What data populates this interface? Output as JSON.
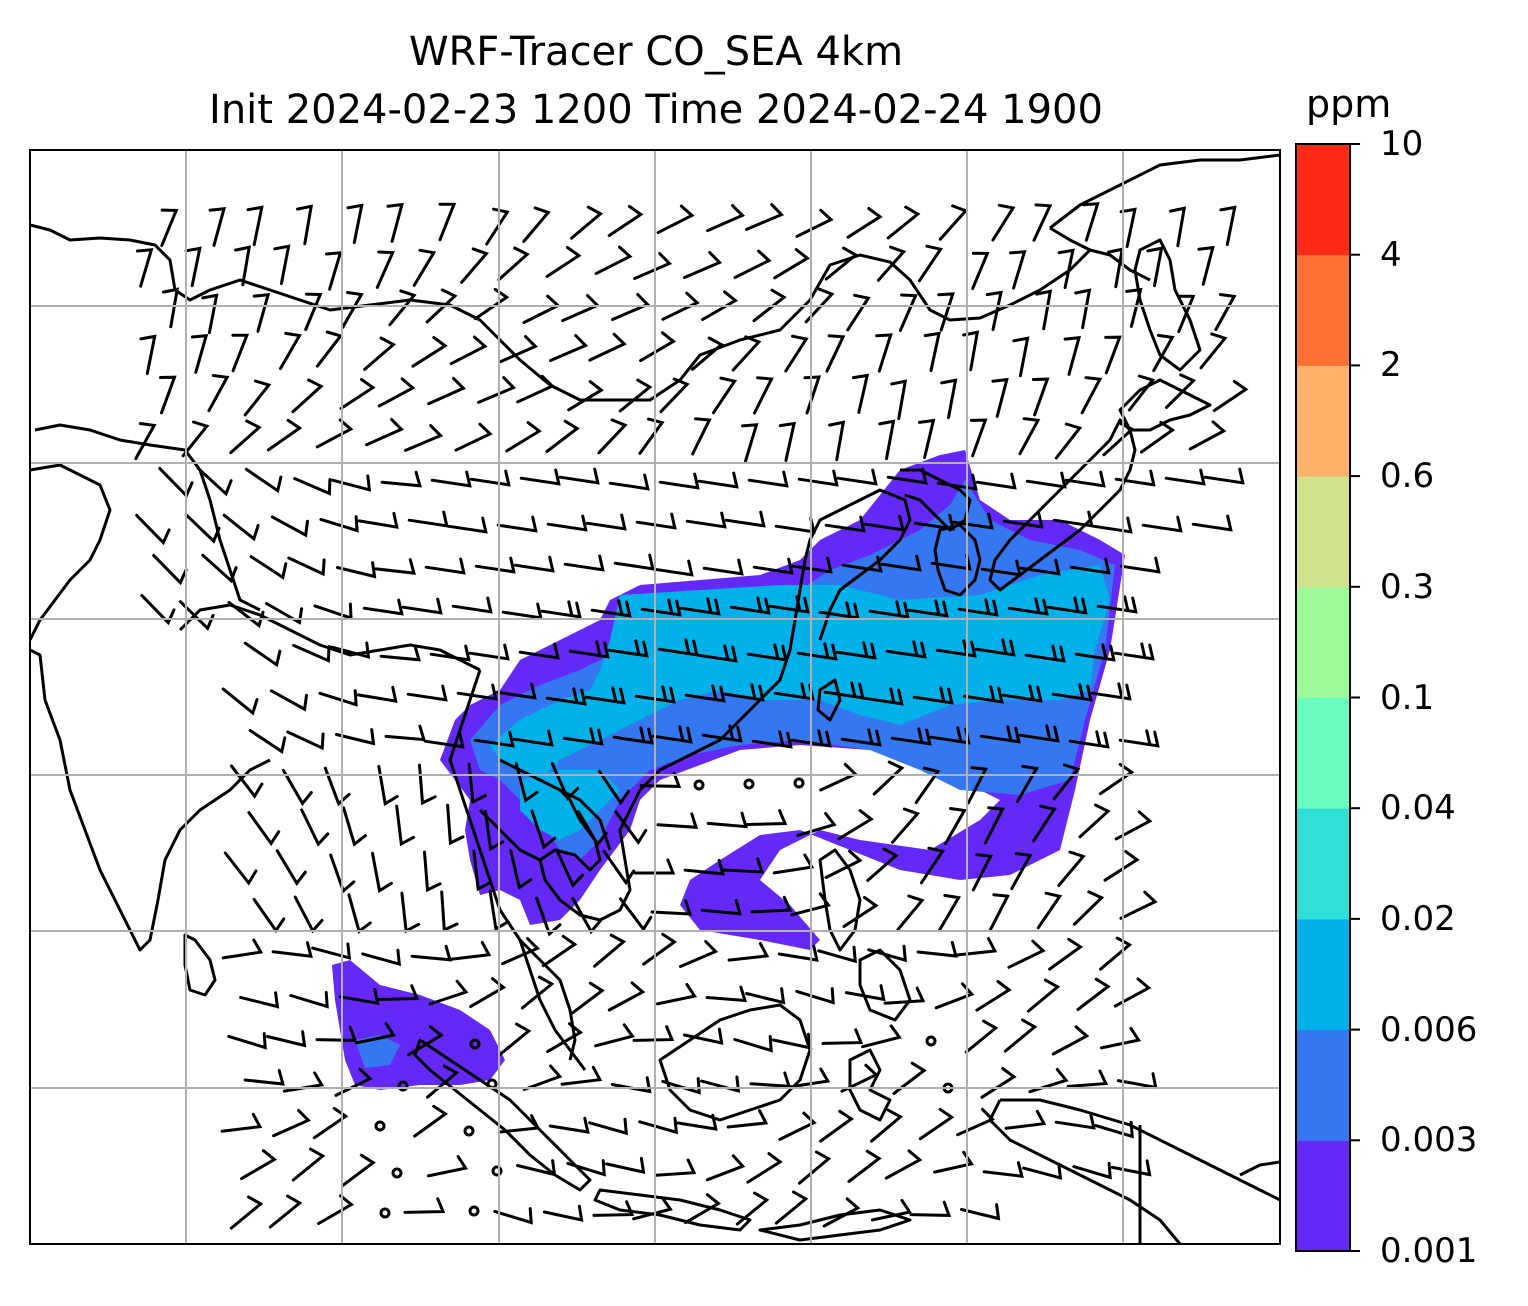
{
  "title": {
    "line1": "WRF-Tracer CO_SEA 4km",
    "line2": "Init 2024-02-23 1200 Time 2024-02-24 1900"
  },
  "colorbar": {
    "unit": "ppm",
    "ticks": [
      "0.001",
      "0.003",
      "0.006",
      "0.02",
      "0.04",
      "0.1",
      "0.3",
      "0.6",
      "2",
      "4",
      "10"
    ],
    "colors": [
      "#6429f7",
      "#3477f0",
      "#03b1ea",
      "#30dfd6",
      "#6afcbe",
      "#9cfa9a",
      "#d0e38a",
      "#feb168",
      "#ff7134",
      "#ff2918"
    ]
  },
  "map": {
    "grid": true,
    "coastline_color": "#000000",
    "grid_color": "#b0b0b0"
  }
}
